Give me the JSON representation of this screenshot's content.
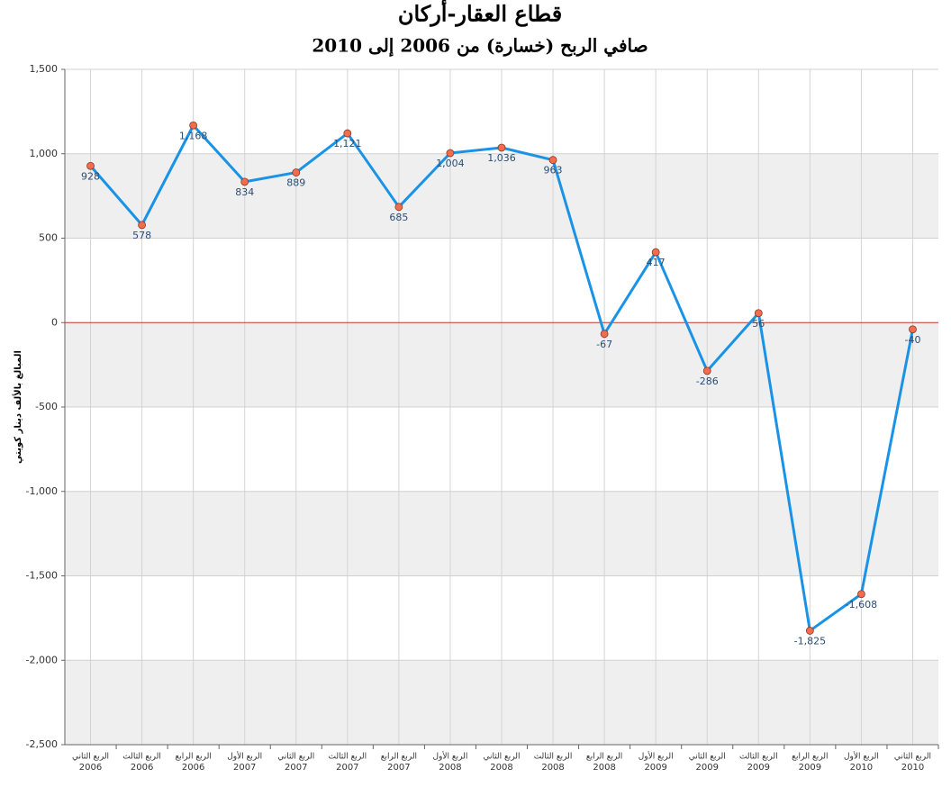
{
  "chart_data": {
    "type": "line",
    "title": "قطاع العقار-أركان",
    "subtitle": "صافي الربح (خسارة) من 2006 إلى 2010",
    "y_label": "المبالغ بالألف دينار كويتي",
    "categories": [
      [
        "الربع الثاني",
        "2006"
      ],
      [
        "الربع الثالث",
        "2006"
      ],
      [
        "الربع الرابع",
        "2006"
      ],
      [
        "الربع الأول",
        "2007"
      ],
      [
        "الربع الثاني",
        "2007"
      ],
      [
        "الربع الثالث",
        "2007"
      ],
      [
        "الربع الرابع",
        "2007"
      ],
      [
        "الربع الأول",
        "2008"
      ],
      [
        "الربع الثاني",
        "2008"
      ],
      [
        "الربع الثالث",
        "2008"
      ],
      [
        "الربع الرابع",
        "2008"
      ],
      [
        "الربع الأول",
        "2009"
      ],
      [
        "الربع الثاني",
        "2009"
      ],
      [
        "الربع الثالث",
        "2009"
      ],
      [
        "الربع الرابع",
        "2009"
      ],
      [
        "الربع الأول",
        "2010"
      ],
      [
        "الربع الثاني",
        "2010"
      ]
    ],
    "values": [
      928,
      578,
      1168,
      834,
      889,
      1121,
      685,
      1004,
      1036,
      963,
      -67,
      417,
      -286,
      56,
      -1825,
      -1608,
      -40
    ],
    "value_labels": [
      "928",
      "578",
      "1,168",
      "834",
      "889",
      "1,121",
      "685",
      "1,004",
      "1,036",
      "963",
      "-67",
      "417",
      "-286",
      "56",
      "-1,825",
      "-1,608",
      "-40"
    ],
    "color": "#1a93e6",
    "marker_color": "#f26c4f",
    "zero_line_color": "#c0392b",
    "ylim": [
      -2500,
      1500
    ],
    "yticks": [
      {
        "value": 1500,
        "label": "1,500"
      },
      {
        "value": 1000,
        "label": "1,000"
      },
      500,
      0,
      -500,
      {
        "value": -1000,
        "label": "-1,000"
      },
      {
        "value": -1500,
        "label": "-1,500"
      },
      {
        "value": -2000,
        "label": "-2,000"
      },
      {
        "value": -2500,
        "label": "-2,500"
      }
    ],
    "grid": true
  }
}
